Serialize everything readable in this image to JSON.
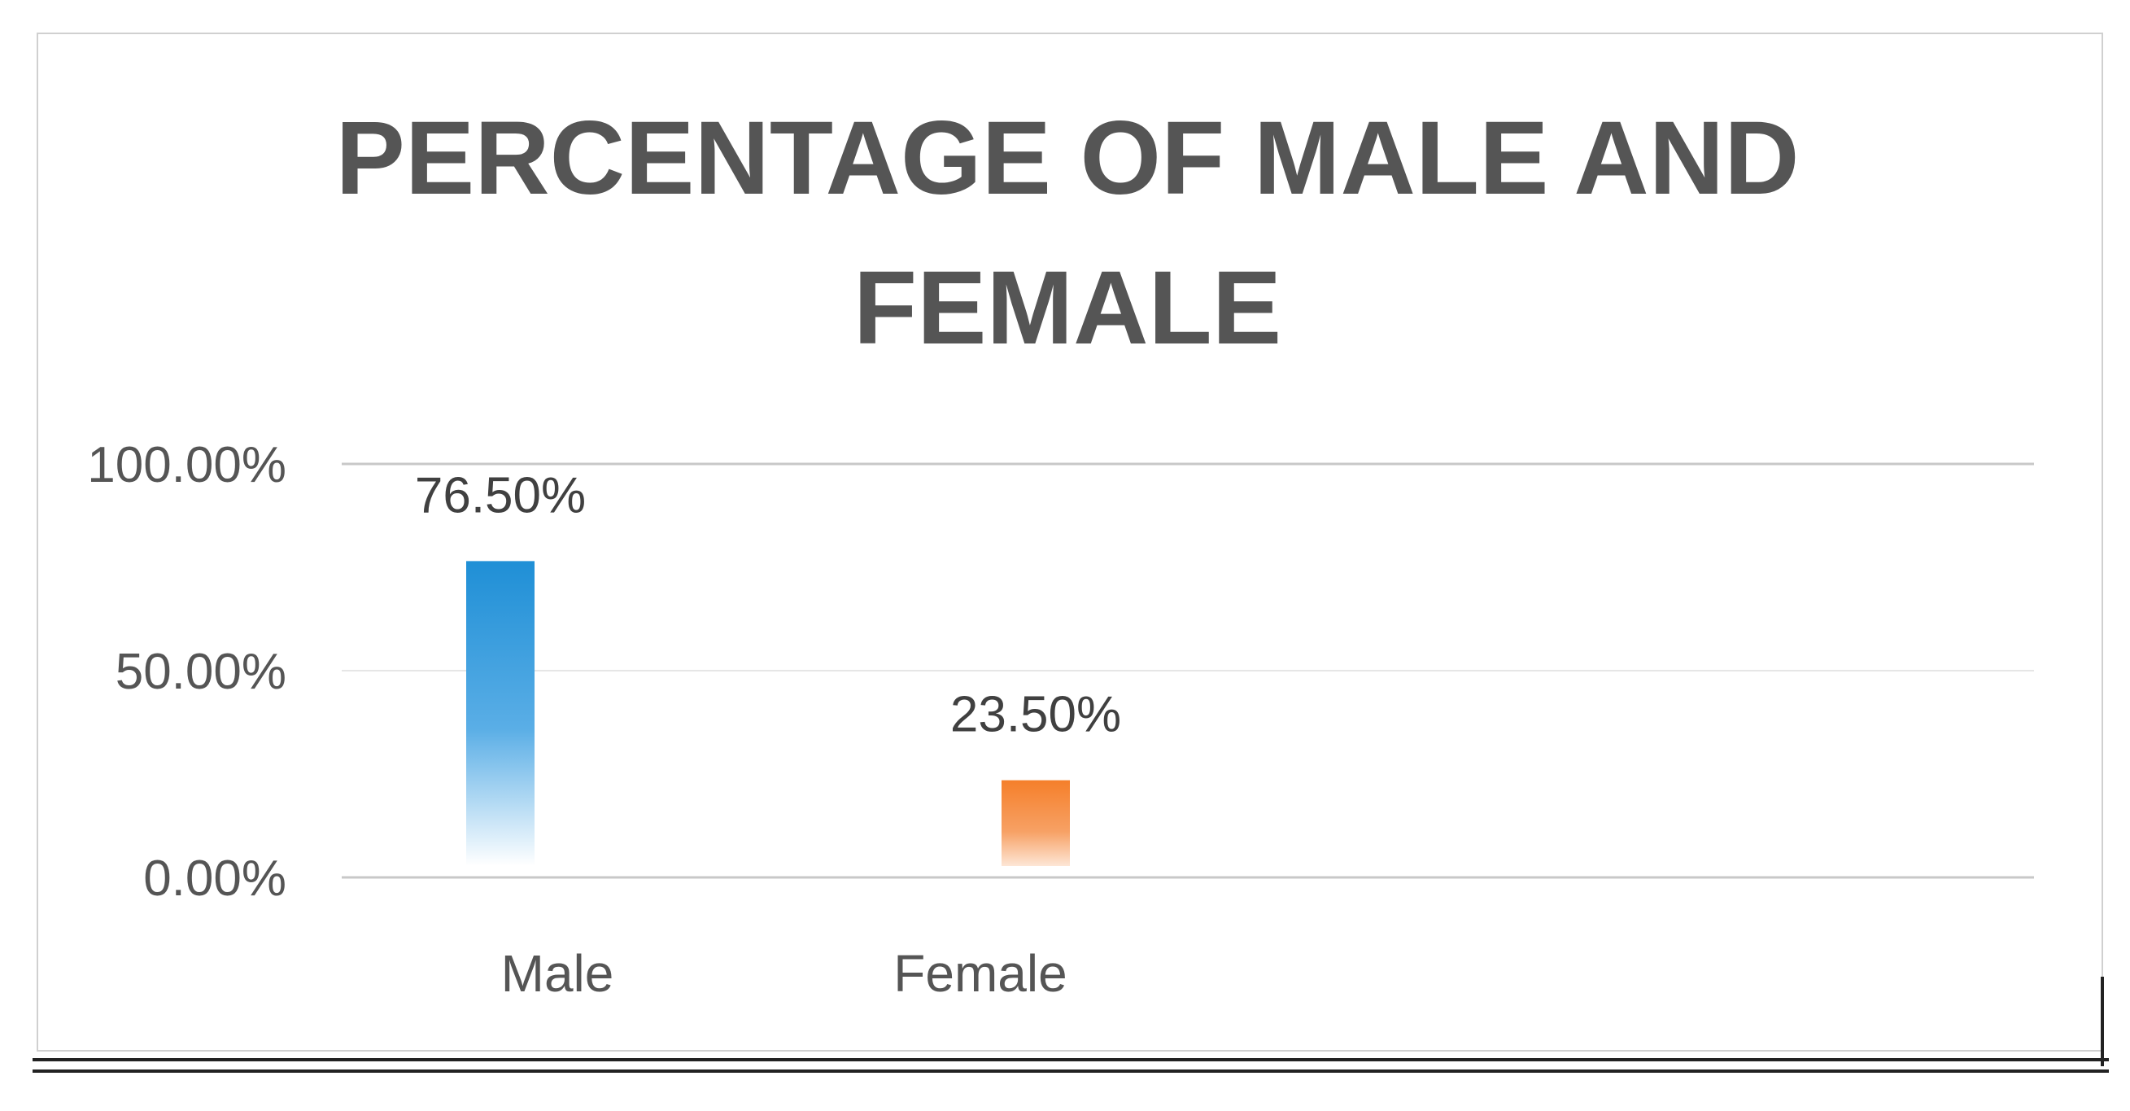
{
  "chart_data": {
    "type": "bar",
    "title_lines": [
      "PERCENTAGE OF MALE AND",
      "FEMALE"
    ],
    "categories": [
      "Male",
      "Female"
    ],
    "values": [
      76.5,
      23.5
    ],
    "data_labels": [
      "76.50%",
      "23.50%"
    ],
    "y_ticks": [
      0,
      50,
      100
    ],
    "y_tick_labels": [
      "0.00%",
      "50.00%",
      "100.00%"
    ],
    "ylim": [
      0,
      100
    ],
    "grid": true,
    "legend": "none",
    "colors": [
      "#2e95d8",
      "#f58232"
    ],
    "xlabel": "",
    "ylabel": ""
  }
}
